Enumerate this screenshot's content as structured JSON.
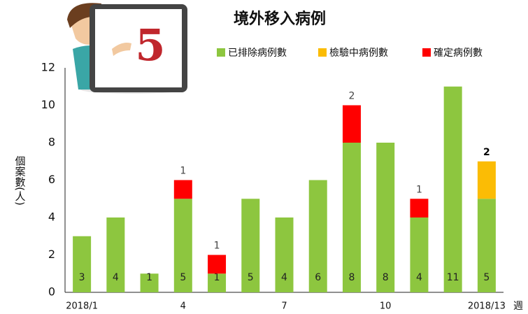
{
  "chart_data": {
    "type": "stacked-bar",
    "title": "境外移入病例",
    "badge": "5",
    "y_label": "個案數(人)",
    "x_label": "週",
    "categories": [
      "2018/1",
      null,
      null,
      "4",
      null,
      null,
      "7",
      null,
      null,
      "10",
      null,
      null,
      "2018/13"
    ],
    "series": [
      {
        "name": "已排除病例數",
        "color": "#8dc63f",
        "values": [
          3,
          4,
          1,
          5,
          1,
          5,
          4,
          6,
          8,
          8,
          4,
          11,
          5
        ]
      },
      {
        "name": "檢驗中病例數",
        "color": "#fbbc05",
        "values": [
          0,
          0,
          0,
          0,
          0,
          0,
          0,
          0,
          0,
          0,
          0,
          0,
          2
        ]
      },
      {
        "name": "確定病例數",
        "color": "#ff0000",
        "values": [
          0,
          0,
          0,
          1,
          1,
          0,
          0,
          0,
          2,
          0,
          1,
          0,
          0
        ]
      }
    ],
    "ylim": [
      0,
      12
    ],
    "yticks": [
      0,
      2,
      4,
      6,
      8,
      10,
      12
    ],
    "grid": false
  }
}
